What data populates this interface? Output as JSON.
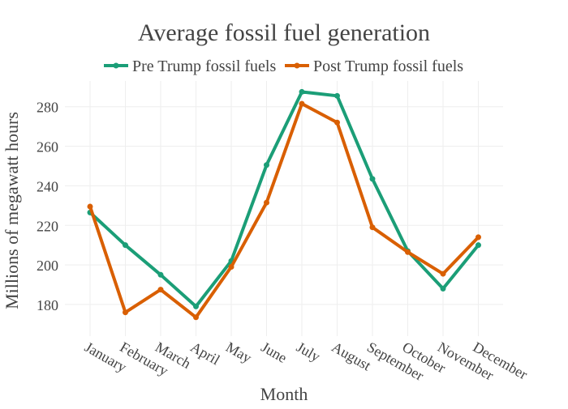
{
  "chart_data": {
    "type": "line",
    "title": "Average fossil fuel generation",
    "xlabel": "Month",
    "ylabel": "Millions of megawatt hours",
    "categories": [
      "January",
      "February",
      "March",
      "April",
      "May",
      "June",
      "July",
      "August",
      "September",
      "October",
      "November",
      "December"
    ],
    "yticks": [
      180,
      200,
      220,
      240,
      260,
      280
    ],
    "ylim": [
      164,
      293
    ],
    "grid": true,
    "legend_position": "top-center",
    "series": [
      {
        "name": "Pre Trump fossil fuels",
        "color": "#1b9e77",
        "values": [
          226.5,
          210,
          195,
          179,
          202,
          250.5,
          287.5,
          285.5,
          243.5,
          207,
          188,
          210
        ]
      },
      {
        "name": "Post Trump fossil fuels",
        "color": "#d95f02",
        "values": [
          229.5,
          176,
          187.5,
          173.5,
          199,
          231.5,
          281.5,
          272,
          219,
          206.5,
          195.5,
          214
        ]
      }
    ]
  }
}
